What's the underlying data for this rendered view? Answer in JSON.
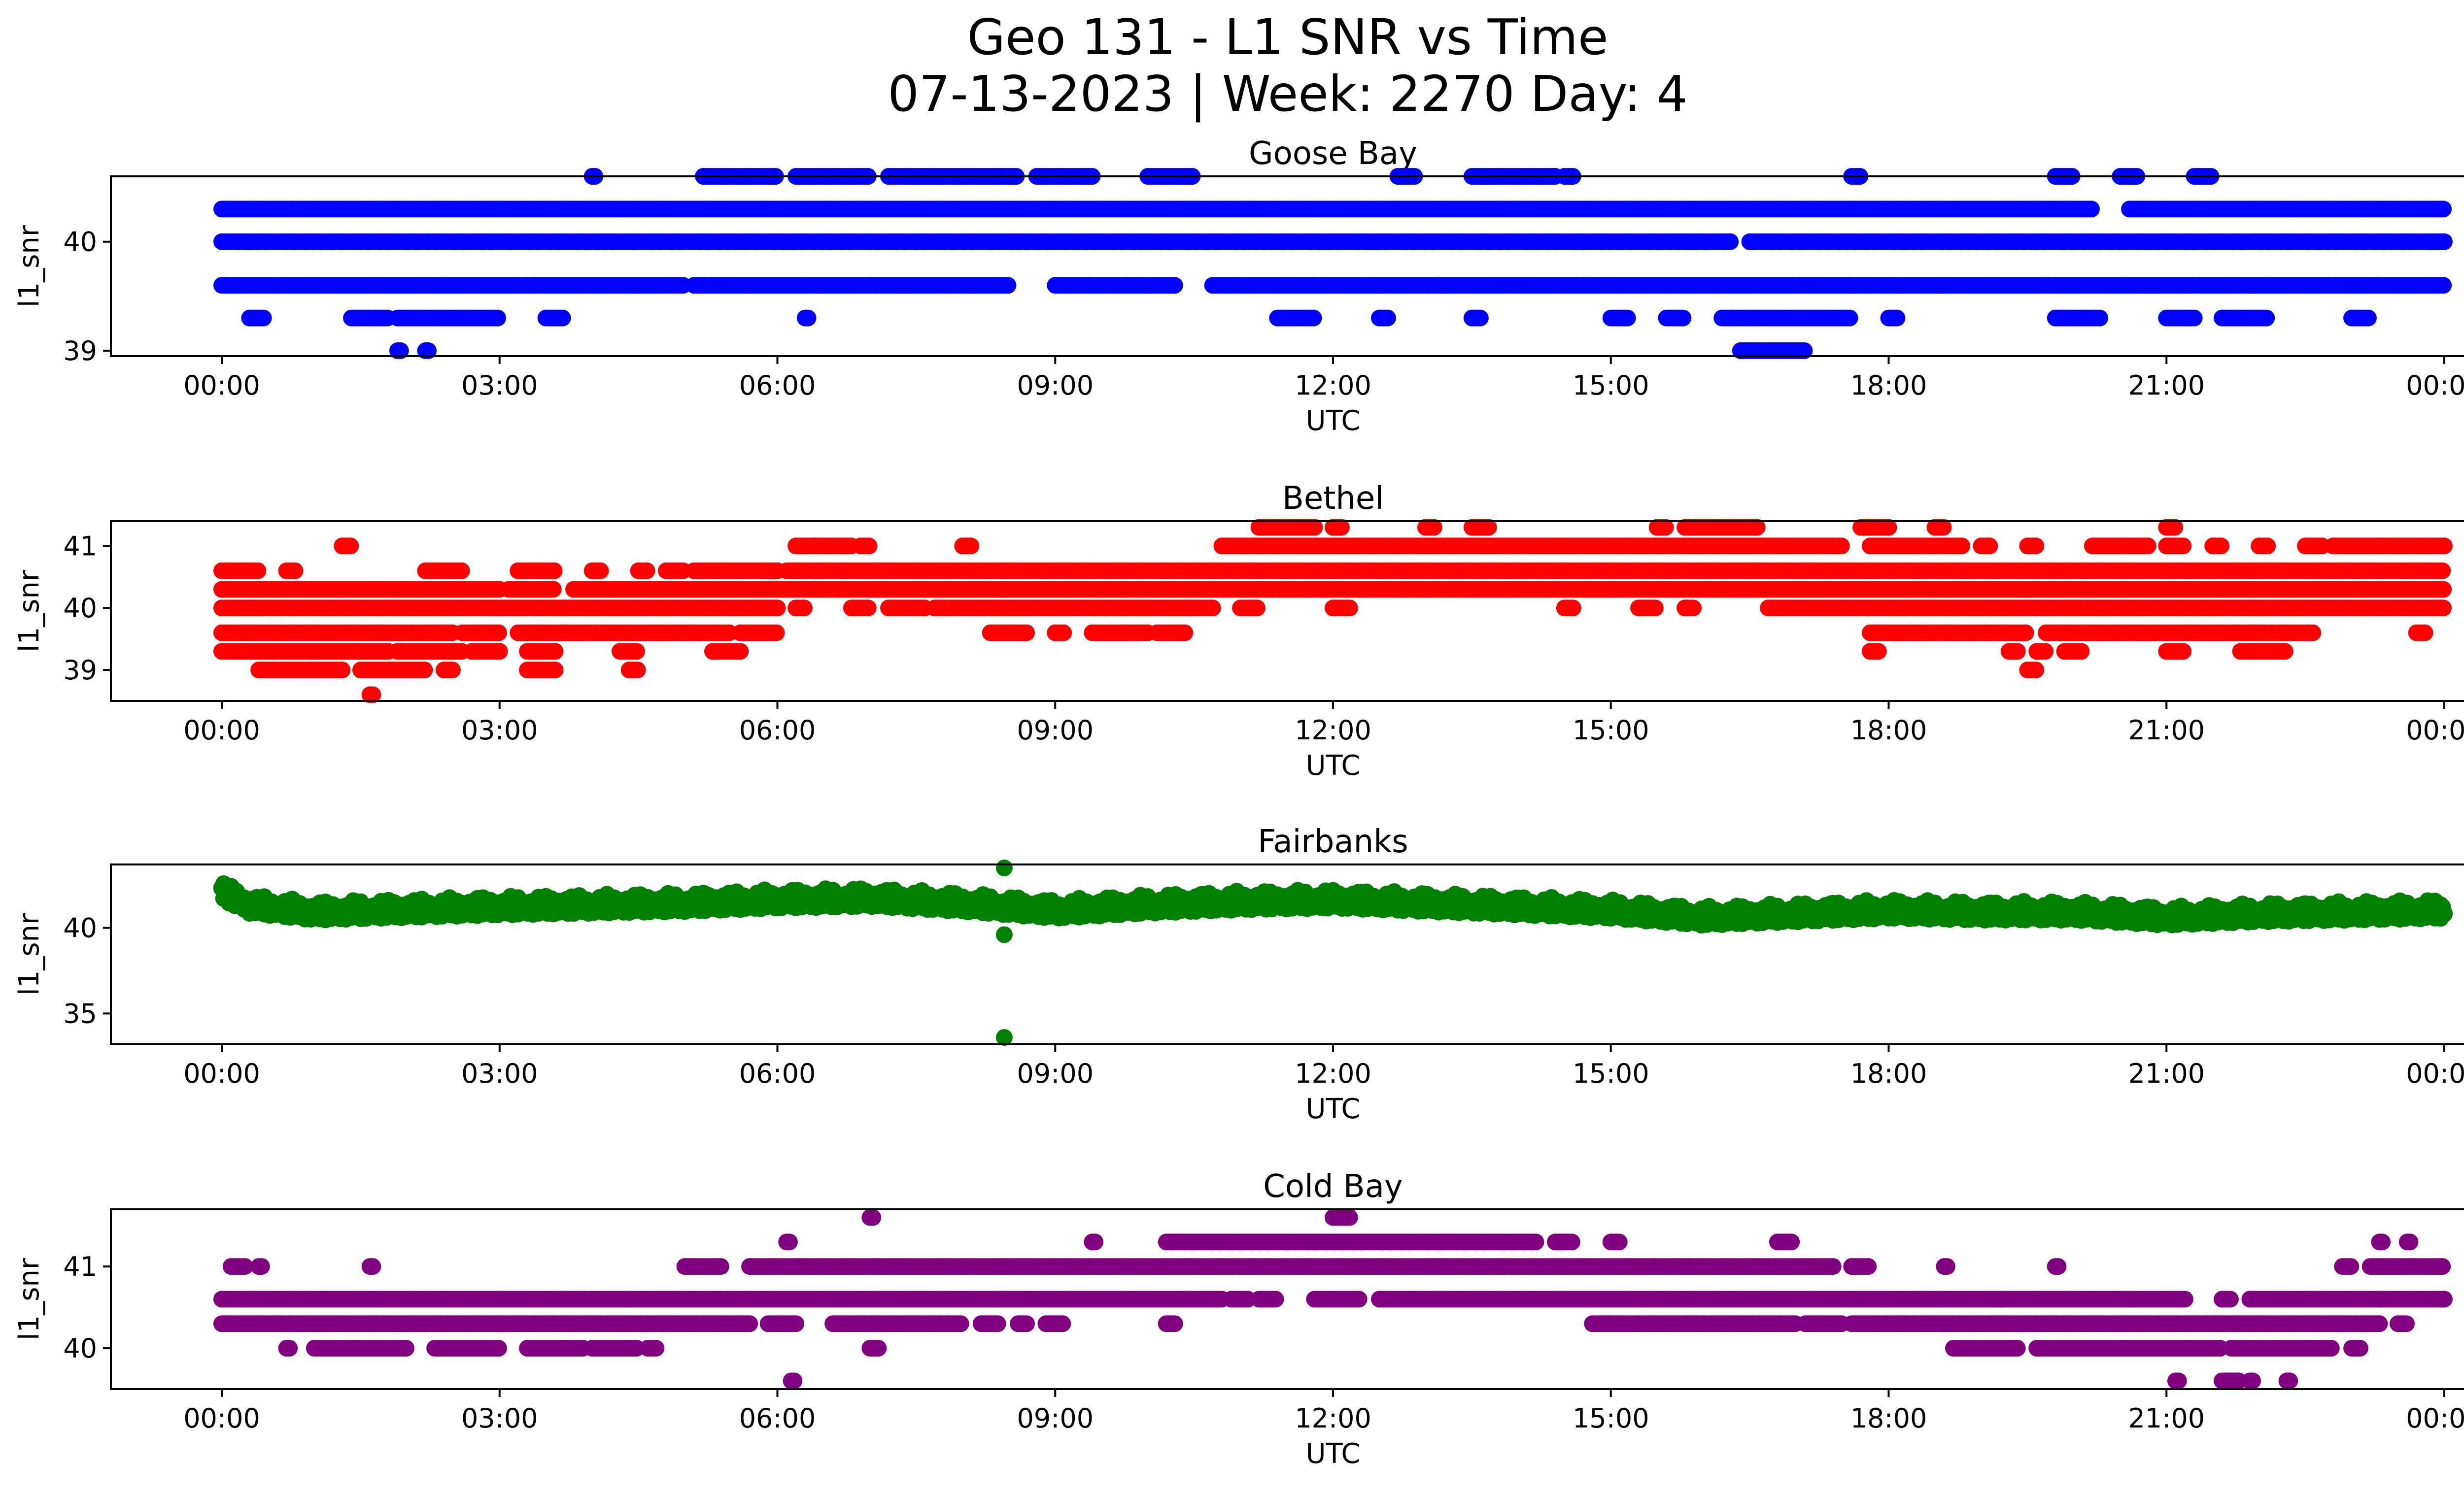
{
  "title_line1": "Geo 131 - L1 SNR vs Time",
  "title_line2": "07-13-2023 | Week: 2270 Day: 4",
  "xlabel": "UTC",
  "ylabel": "l1_snr",
  "x_tick_labels": [
    "00:00",
    "03:00",
    "06:00",
    "09:00",
    "12:00",
    "15:00",
    "18:00",
    "21:00",
    "00:00"
  ],
  "chart_data": [
    {
      "type": "scatter",
      "title": "Goose Bay",
      "color": "#0000ff",
      "xlabel": "UTC",
      "ylabel": "l1_snr",
      "x_unit": "hours UTC",
      "xlim": [
        0,
        24
      ],
      "ylim": [
        38.95,
        40.6
      ],
      "yticks": [
        39,
        40
      ],
      "x_ticks": [
        "00:00",
        "03:00",
        "06:00",
        "09:00",
        "12:00",
        "15:00",
        "18:00",
        "21:00",
        "00:00"
      ],
      "levels": [
        {
          "y": 40.3,
          "segments": [
            [
              0,
              20.2
            ],
            [
              20.6,
              24
            ]
          ]
        },
        {
          "y": 40.0,
          "segments": [
            [
              0,
              16.3
            ],
            [
              16.5,
              24
            ]
          ]
        },
        {
          "y": 39.6,
          "segments": [
            [
              0,
              5
            ],
            [
              5.1,
              8.5
            ],
            [
              9.0,
              10.3
            ],
            [
              10.7,
              24
            ]
          ]
        },
        {
          "y": 40.6,
          "segments": [
            [
              4.0,
              4.05
            ],
            [
              5.2,
              6.0
            ],
            [
              6.2,
              7.0
            ],
            [
              7.2,
              8.6
            ],
            [
              8.8,
              9.4
            ],
            [
              10.0,
              10.5
            ],
            [
              12.7,
              12.9
            ],
            [
              13.5,
              14.4
            ],
            [
              14.5,
              14.6
            ],
            [
              17.6,
              17.7
            ],
            [
              19.8,
              20.0
            ],
            [
              20.5,
              20.7
            ],
            [
              21.3,
              21.5
            ]
          ]
        },
        {
          "y": 39.3,
          "segments": [
            [
              0.3,
              0.45
            ],
            [
              1.4,
              1.8
            ],
            [
              1.9,
              3.0
            ],
            [
              3.5,
              3.7
            ],
            [
              6.3,
              6.35
            ],
            [
              11.4,
              11.8
            ],
            [
              12.5,
              12.6
            ],
            [
              13.5,
              13.6
            ],
            [
              15.0,
              15.2
            ],
            [
              15.6,
              15.8
            ],
            [
              16.2,
              17.6
            ],
            [
              18.0,
              18.1
            ],
            [
              19.8,
              20.3
            ],
            [
              21.0,
              21.3
            ],
            [
              21.6,
              22.1
            ],
            [
              23.0,
              23.2
            ]
          ]
        },
        {
          "y": 39.0,
          "segments": [
            [
              1.9,
              1.95
            ],
            [
              2.2,
              2.25
            ],
            [
              16.4,
              17.1
            ]
          ]
        }
      ]
    },
    {
      "type": "scatter",
      "title": "Bethel",
      "color": "#ff0000",
      "xlabel": "UTC",
      "ylabel": "l1_snr",
      "x_unit": "hours UTC",
      "xlim": [
        0,
        24
      ],
      "ylim": [
        38.5,
        41.4
      ],
      "yticks": [
        39,
        40,
        41
      ],
      "x_ticks": [
        "00:00",
        "03:00",
        "06:00",
        "09:00",
        "12:00",
        "15:00",
        "18:00",
        "21:00",
        "00:00"
      ],
      "levels": [
        {
          "y": 41.3,
          "segments": [
            [
              11.2,
              11.8
            ],
            [
              12.0,
              12.1
            ],
            [
              13.0,
              13.1
            ],
            [
              13.5,
              13.7
            ],
            [
              15.5,
              15.6
            ],
            [
              15.8,
              16.6
            ],
            [
              17.7,
              18.0
            ],
            [
              18.5,
              18.6
            ],
            [
              21.0,
              21.1
            ]
          ]
        },
        {
          "y": 41.0,
          "segments": [
            [
              1.3,
              1.4
            ],
            [
              6.2,
              6.8
            ],
            [
              6.9,
              7.0
            ],
            [
              8.0,
              8.1
            ],
            [
              10.8,
              17.5
            ],
            [
              17.8,
              18.8
            ],
            [
              19.0,
              19.1
            ],
            [
              19.5,
              19.6
            ],
            [
              20.2,
              20.8
            ],
            [
              21.0,
              21.2
            ],
            [
              21.5,
              21.6
            ],
            [
              22.0,
              22.1
            ],
            [
              22.5,
              22.7
            ],
            [
              22.8,
              24
            ]
          ]
        },
        {
          "y": 40.6,
          "segments": [
            [
              0,
              0.4
            ],
            [
              0.7,
              0.8
            ],
            [
              2.2,
              2.6
            ],
            [
              3.2,
              3.6
            ],
            [
              4.0,
              4.1
            ],
            [
              4.5,
              4.6
            ],
            [
              4.8,
              5.0
            ],
            [
              5.1,
              6.0
            ],
            [
              6.1,
              24
            ]
          ]
        },
        {
          "y": 40.3,
          "segments": [
            [
              0,
              3.0
            ],
            [
              3.1,
              3.6
            ],
            [
              3.8,
              24
            ]
          ]
        },
        {
          "y": 40.0,
          "segments": [
            [
              0,
              6.0
            ],
            [
              6.2,
              6.3
            ],
            [
              6.8,
              7.0
            ],
            [
              7.2,
              7.6
            ],
            [
              7.7,
              10.7
            ],
            [
              11.0,
              11.2
            ],
            [
              12.0,
              12.2
            ],
            [
              14.5,
              14.6
            ],
            [
              15.3,
              15.5
            ],
            [
              15.8,
              15.9
            ],
            [
              16.7,
              24
            ]
          ]
        },
        {
          "y": 39.6,
          "segments": [
            [
              0,
              2.5
            ],
            [
              2.6,
              3.0
            ],
            [
              3.2,
              5.5
            ],
            [
              5.6,
              6.0
            ],
            [
              8.3,
              8.7
            ],
            [
              9.0,
              9.1
            ],
            [
              9.4,
              10.0
            ],
            [
              10.1,
              10.4
            ],
            [
              17.8,
              19.5
            ],
            [
              19.7,
              22.6
            ],
            [
              23.7,
              23.8
            ]
          ]
        },
        {
          "y": 39.3,
          "segments": [
            [
              0,
              1.8
            ],
            [
              1.9,
              2.6
            ],
            [
              2.7,
              3.0
            ],
            [
              3.3,
              3.6
            ],
            [
              4.3,
              4.5
            ],
            [
              5.3,
              5.6
            ],
            [
              17.8,
              17.9
            ],
            [
              19.3,
              19.4
            ],
            [
              19.6,
              19.7
            ],
            [
              19.9,
              20.1
            ],
            [
              21.0,
              21.2
            ],
            [
              21.8,
              22.3
            ]
          ]
        },
        {
          "y": 39.0,
          "segments": [
            [
              0.4,
              1.3
            ],
            [
              1.5,
              2.2
            ],
            [
              2.4,
              2.5
            ],
            [
              3.3,
              3.6
            ],
            [
              4.4,
              4.5
            ],
            [
              19.5,
              19.6
            ]
          ]
        },
        {
          "y": 38.6,
          "segments": [
            [
              1.6,
              1.65
            ]
          ]
        }
      ]
    },
    {
      "type": "scatter",
      "title": "Fairbanks",
      "color": "#008000",
      "xlabel": "UTC",
      "ylabel": "l1_snr",
      "x_unit": "hours UTC",
      "xlim": [
        0,
        24
      ],
      "ylim": [
        33.2,
        43.7
      ],
      "yticks": [
        35,
        40
      ],
      "x_ticks": [
        "00:00",
        "03:00",
        "06:00",
        "09:00",
        "12:00",
        "15:00",
        "18:00",
        "21:00",
        "00:00"
      ],
      "band": [
        [
          0,
          42.3
        ],
        [
          0.3,
          41.5
        ],
        [
          1,
          41.1
        ],
        [
          3,
          41.4
        ],
        [
          4,
          41.5
        ],
        [
          5,
          41.6
        ],
        [
          6,
          41.8
        ],
        [
          7,
          41.9
        ],
        [
          8,
          41.6
        ],
        [
          9,
          41.2
        ],
        [
          10,
          41.5
        ],
        [
          11,
          41.7
        ],
        [
          12,
          41.8
        ],
        [
          13,
          41.6
        ],
        [
          14,
          41.4
        ],
        [
          15,
          41.2
        ],
        [
          16,
          40.8
        ],
        [
          17,
          41.0
        ],
        [
          18,
          41.2
        ],
        [
          19,
          41.1
        ],
        [
          20,
          41.1
        ],
        [
          21,
          40.8
        ],
        [
          22,
          41.0
        ],
        [
          23,
          41.1
        ],
        [
          24,
          41.2
        ]
      ],
      "outliers": [
        [
          8.45,
          43.5
        ],
        [
          8.45,
          39.6
        ],
        [
          8.45,
          33.6
        ]
      ]
    },
    {
      "type": "scatter",
      "title": "Cold Bay",
      "color": "#800080",
      "xlabel": "UTC",
      "ylabel": "l1_snr",
      "x_unit": "hours UTC",
      "xlim": [
        0,
        24
      ],
      "ylim": [
        39.5,
        41.7
      ],
      "yticks": [
        40,
        41
      ],
      "x_ticks": [
        "00:00",
        "03:00",
        "06:00",
        "09:00",
        "12:00",
        "15:00",
        "18:00",
        "21:00",
        "00:00"
      ],
      "levels": [
        {
          "y": 41.6,
          "segments": [
            [
              7.0,
              7.05
            ],
            [
              12.0,
              12.2
            ]
          ]
        },
        {
          "y": 41.3,
          "segments": [
            [
              6.1,
              6.15
            ],
            [
              9.4,
              9.45
            ],
            [
              10.2,
              14.2
            ],
            [
              14.4,
              14.6
            ],
            [
              15.0,
              15.1
            ],
            [
              16.8,
              16.95
            ],
            [
              23.3,
              23.35
            ],
            [
              23.6,
              23.65
            ]
          ]
        },
        {
          "y": 41.0,
          "segments": [
            [
              0.1,
              0.25
            ],
            [
              0.4,
              0.45
            ],
            [
              1.6,
              1.65
            ],
            [
              5.0,
              5.4
            ],
            [
              5.7,
              17.4
            ],
            [
              17.6,
              17.8
            ],
            [
              18.6,
              18.65
            ],
            [
              19.8,
              19.85
            ],
            [
              22.9,
              23.0
            ],
            [
              23.2,
              24
            ]
          ]
        },
        {
          "y": 40.6,
          "segments": [
            [
              0,
              10.8
            ],
            [
              10.9,
              11.1
            ],
            [
              11.2,
              11.4
            ],
            [
              11.8,
              12.3
            ],
            [
              12.5,
              21.2
            ],
            [
              21.6,
              21.7
            ],
            [
              21.9,
              24
            ]
          ]
        },
        {
          "y": 40.3,
          "segments": [
            [
              0,
              5.7
            ],
            [
              5.9,
              6.2
            ],
            [
              6.6,
              8.0
            ],
            [
              8.2,
              8.4
            ],
            [
              8.6,
              8.7
            ],
            [
              8.9,
              9.1
            ],
            [
              10.2,
              10.3
            ],
            [
              14.8,
              17.0
            ],
            [
              17.1,
              17.5
            ],
            [
              17.6,
              23.3
            ],
            [
              23.5,
              23.6
            ]
          ]
        },
        {
          "y": 40.0,
          "segments": [
            [
              0.7,
              0.75
            ],
            [
              1.0,
              2.0
            ],
            [
              2.3,
              3.0
            ],
            [
              3.3,
              3.9
            ],
            [
              4.0,
              4.5
            ],
            [
              4.6,
              4.7
            ],
            [
              7.0,
              7.1
            ],
            [
              18.7,
              19.4
            ],
            [
              19.6,
              21.6
            ],
            [
              21.7,
              22.8
            ],
            [
              23.0,
              23.1
            ]
          ]
        },
        {
          "y": 39.6,
          "segments": [
            [
              6.15,
              6.2
            ],
            [
              21.1,
              21.15
            ],
            [
              21.6,
              21.8
            ],
            [
              21.9,
              21.95
            ],
            [
              22.3,
              22.35
            ]
          ]
        }
      ]
    }
  ]
}
